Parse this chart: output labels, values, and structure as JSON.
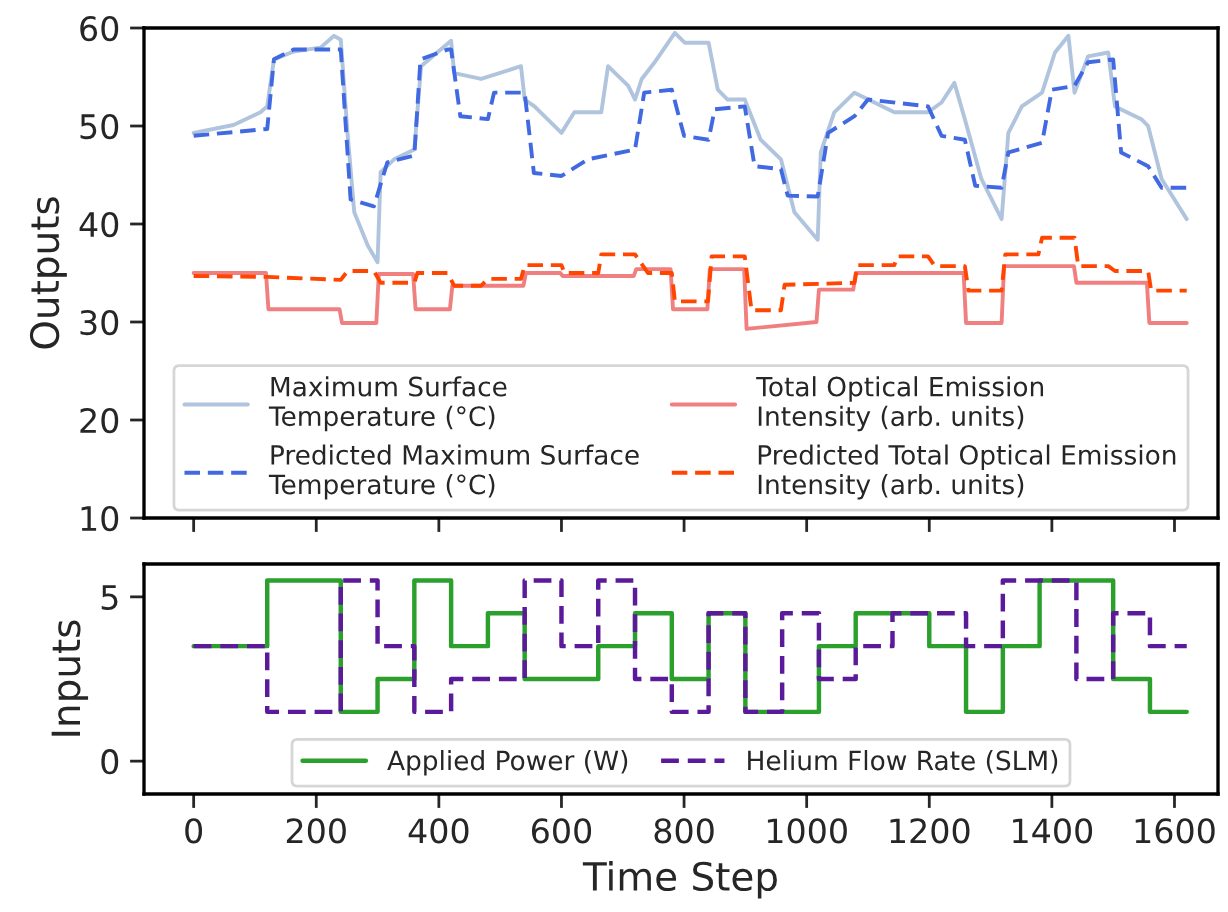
{
  "chart_data": [
    {
      "type": "line",
      "ylabel": "Outputs",
      "xlim": [
        -81,
        1671
      ],
      "ylim": [
        10,
        60
      ],
      "xticks": [
        0,
        200,
        400,
        600,
        800,
        1000,
        1200,
        1400,
        1600
      ],
      "yticks": [
        10,
        20,
        30,
        40,
        50,
        60
      ],
      "tick_labels": "y",
      "legend": "bottom",
      "grid": false,
      "series": [
        {
          "name": "Maximum Surface\nTemperature (°C)",
          "color": "#b0c4de",
          "line_style": "solid",
          "x": [
            0,
            65,
            109,
            120,
            131,
            163,
            207,
            229,
            240,
            251,
            262,
            284,
            300,
            305,
            327,
            360,
            371,
            403,
            420,
            425,
            469,
            534,
            540,
            556,
            600,
            621,
            665,
            676,
            709,
            720,
            731,
            752,
            785,
            801,
            840,
            855,
            871,
            899,
            925,
            958,
            980,
            1018,
            1023,
            1045,
            1078,
            1143,
            1198,
            1220,
            1241,
            1258,
            1285,
            1318,
            1329,
            1351,
            1384,
            1405,
            1427,
            1437,
            1459,
            1492,
            1503,
            1546,
            1557,
            1579,
            1620
          ],
          "values": [
            49.3,
            50.1,
            51.4,
            52,
            56.8,
            57.6,
            58,
            59.2,
            58.8,
            49.3,
            41.2,
            37.8,
            36.1,
            45.3,
            46.6,
            47.6,
            56.1,
            57.8,
            58.7,
            55.4,
            54.8,
            56.1,
            52.7,
            52,
            49.3,
            51.4,
            51.4,
            56.1,
            54.1,
            52.7,
            54.8,
            56.5,
            59.5,
            58.5,
            58.5,
            53.7,
            52.7,
            52.7,
            48.6,
            46.6,
            41.2,
            38.4,
            47.3,
            51.4,
            53.4,
            51.4,
            51.4,
            52.4,
            54.4,
            50.7,
            44.6,
            40.5,
            49.3,
            52,
            53.4,
            57.5,
            59.2,
            53.4,
            57.1,
            57.5,
            52,
            50.7,
            50,
            44.6,
            40.5
          ]
        },
        {
          "name": "Predicted Maximum Surface\nTemperature (°C)",
          "color": "#4169e1",
          "line_style": "dashed",
          "x": [
            0,
            120,
            131,
            163,
            240,
            256,
            294,
            316,
            360,
            370,
            414,
            420,
            435,
            480,
            490,
            540,
            555,
            600,
            643,
            720,
            735,
            780,
            800,
            840,
            850,
            899,
            915,
            958,
            969,
            1018,
            1035,
            1078,
            1100,
            1198,
            1220,
            1258,
            1275,
            1318,
            1329,
            1384,
            1400,
            1437,
            1459,
            1500,
            1513,
            1557,
            1579,
            1620
          ],
          "values": [
            49.0,
            49.7,
            56.8,
            57.8,
            57.8,
            42.5,
            41.8,
            46.3,
            47,
            56.8,
            57.8,
            57.8,
            51,
            50.7,
            53.4,
            53.4,
            45.2,
            44.9,
            46.6,
            47.6,
            53.4,
            53.7,
            49,
            48.6,
            51.7,
            52,
            45.9,
            45.6,
            42.9,
            42.8,
            49.3,
            51,
            52.7,
            52,
            49,
            48.6,
            43.9,
            43.7,
            47.3,
            48.3,
            53.7,
            54.1,
            56.5,
            56.8,
            47.3,
            45.9,
            43.7,
            43.7
          ]
        },
        {
          "name": "Total Optical Emission\nIntensity (arb. units)",
          "color": "#f08080",
          "line_style": "solid",
          "x": [
            0,
            118,
            122,
            238,
            242,
            298,
            302,
            358,
            362,
            418,
            422,
            538,
            542,
            598,
            602,
            718,
            722,
            778,
            782,
            838,
            842,
            898,
            902,
            1016,
            1020,
            1076,
            1080,
            1256,
            1260,
            1318,
            1322,
            1436,
            1440,
            1555,
            1559,
            1620
          ],
          "values": [
            35,
            35,
            31.3,
            31.3,
            29.9,
            29.9,
            34.9,
            34.9,
            31.3,
            31.3,
            33.7,
            33.7,
            35,
            35,
            34.7,
            34.7,
            35.4,
            35.4,
            31.3,
            31.3,
            35.4,
            35.4,
            29.3,
            30,
            33.3,
            33.3,
            35,
            35,
            29.9,
            29.9,
            35.7,
            35.7,
            34,
            34,
            29.9,
            29.9
          ]
        },
        {
          "name": "Predicted Total Optical Emission\nIntensity (arb. units)",
          "color": "#ff4500",
          "line_style": "dashed",
          "x": [
            0,
            120,
            240,
            251,
            294,
            305,
            360,
            365,
            414,
            425,
            469,
            480,
            534,
            540,
            600,
            605,
            660,
            665,
            720,
            741,
            780,
            785,
            839,
            845,
            899,
            910,
            958,
            964,
            1023,
            1078,
            1083,
            1143,
            1148,
            1198,
            1209,
            1258,
            1264,
            1318,
            1324,
            1378,
            1384,
            1437,
            1443,
            1492,
            1503,
            1557,
            1562,
            1620
          ],
          "values": [
            34.7,
            34.6,
            34.3,
            35.2,
            35.2,
            34,
            34,
            35,
            35,
            33.7,
            33.7,
            34.4,
            34.4,
            35.8,
            35.8,
            35,
            35,
            36.9,
            36.9,
            35,
            35,
            32.1,
            32.1,
            36.7,
            36.7,
            31.2,
            31.2,
            33.8,
            33.9,
            34,
            35.8,
            35.8,
            36.7,
            36.7,
            35.7,
            35.7,
            33.2,
            33.2,
            36.9,
            36.9,
            38.6,
            38.6,
            35.7,
            35.7,
            35.2,
            35.2,
            33.2,
            33.2
          ]
        }
      ]
    },
    {
      "type": "step",
      "xlabel": "Time Step",
      "ylabel": "Inputs",
      "xlim": [
        -81,
        1671
      ],
      "ylim": [
        -1,
        6
      ],
      "xticks": [
        0,
        200,
        400,
        600,
        800,
        1000,
        1200,
        1400,
        1600
      ],
      "yticks": [
        0,
        5
      ],
      "legend": "bottom",
      "grid": false,
      "series": [
        {
          "name": "Applied Power (W)",
          "color": "#2ca02c",
          "line_style": "solid",
          "x": [
            0,
            120,
            240,
            300,
            360,
            420,
            480,
            540,
            660,
            720,
            780,
            840,
            900,
            1020,
            1080,
            1200,
            1260,
            1320,
            1380,
            1500,
            1560,
            1620
          ],
          "values": [
            3.5,
            5.5,
            1.5,
            2.5,
            5.5,
            3.5,
            4.5,
            2.5,
            3.5,
            4.5,
            2.5,
            4.5,
            1.5,
            3.5,
            4.5,
            3.5,
            1.5,
            3.5,
            5.5,
            2.5,
            1.5,
            1.5
          ]
        },
        {
          "name": "Helium Flow Rate (SLM)",
          "color": "#5b1a9a",
          "line_style": "dashed",
          "x": [
            0,
            120,
            240,
            300,
            360,
            420,
            540,
            600,
            660,
            720,
            780,
            840,
            900,
            960,
            1020,
            1080,
            1140,
            1260,
            1320,
            1440,
            1500,
            1560,
            1620
          ],
          "values": [
            3.5,
            1.5,
            5.5,
            3.5,
            1.5,
            2.5,
            5.5,
            3.5,
            5.5,
            2.5,
            1.5,
            4.5,
            1.5,
            4.5,
            2.5,
            3.5,
            4.5,
            3.5,
            5.5,
            2.5,
            4.5,
            3.5,
            3.5
          ]
        }
      ]
    }
  ]
}
